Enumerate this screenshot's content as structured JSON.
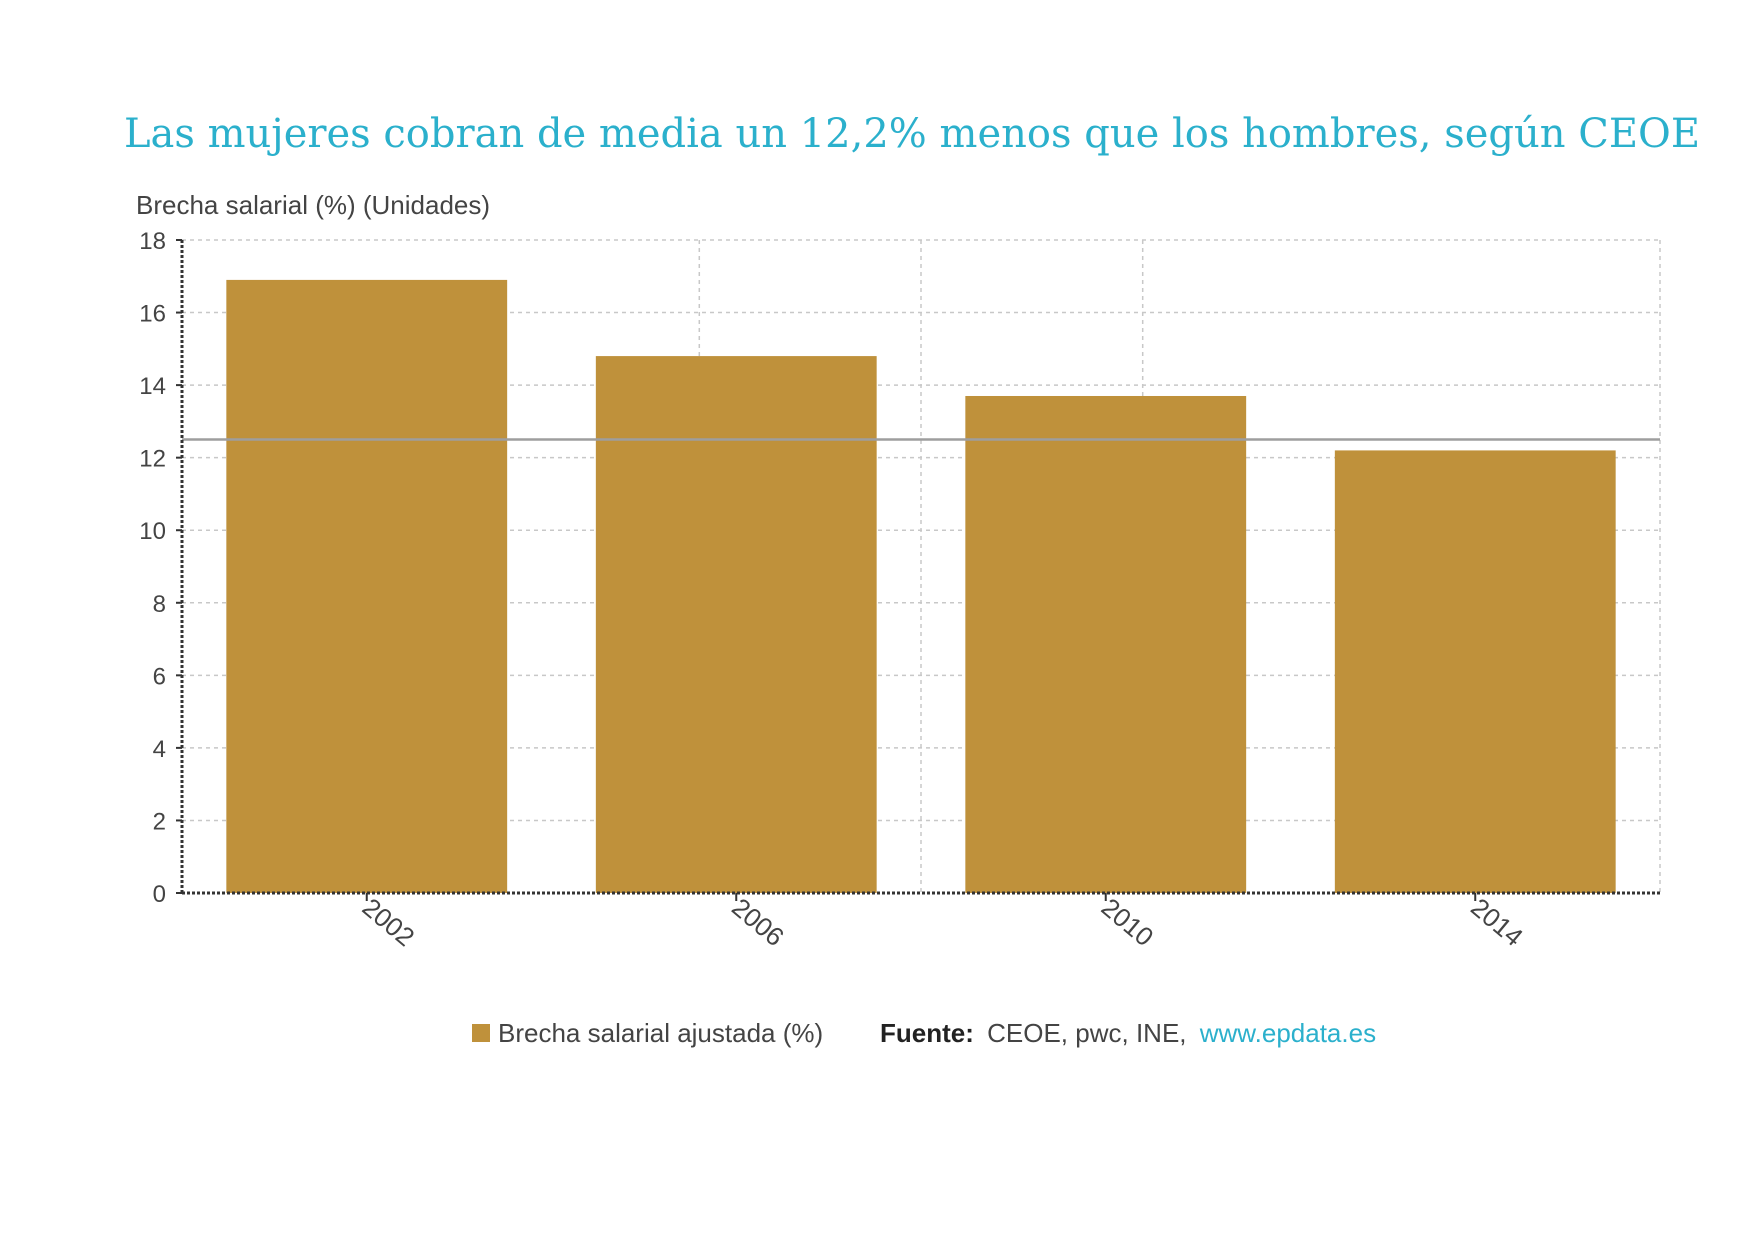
{
  "chart_data": {
    "type": "bar",
    "title": "Las mujeres cobran de media un 12,2% menos que los hombres, según CEOE",
    "ylabel": "Brecha salarial (%) (Unidades)",
    "xlabel": "",
    "categories": [
      "2002",
      "2006",
      "2010",
      "2014"
    ],
    "series": [
      {
        "name": "Brecha salarial ajustada (%)",
        "values": [
          16.9,
          14.8,
          13.7,
          12.2
        ],
        "color": "#BF913B"
      }
    ],
    "ylim": [
      0,
      18
    ],
    "yticks": [
      0,
      2,
      4,
      6,
      8,
      10,
      12,
      14,
      16,
      18
    ],
    "reference_line": {
      "value": 12.5,
      "color": "#9E9E9E"
    },
    "grid": true,
    "legend_position": "bottom",
    "source": {
      "label": "Fuente:",
      "text": "CEOE, pwc, INE,",
      "link": "www.epdata.es"
    },
    "colors": {
      "title": "#2BB0CC",
      "link": "#2BB0CC",
      "bar": "#BF913B",
      "axis": "#333333",
      "grid": "#C8C8C8",
      "text": "#444444"
    }
  }
}
